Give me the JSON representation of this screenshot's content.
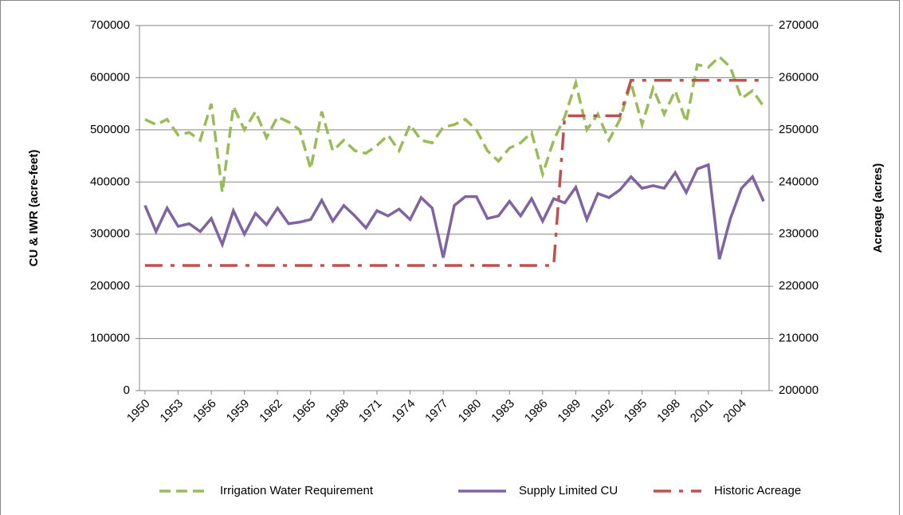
{
  "chart_data": {
    "type": "line",
    "y_label": "CU & IWR (acre-feet)",
    "y2_label": "Acreage (acres)",
    "x": [
      1950,
      1951,
      1952,
      1953,
      1954,
      1955,
      1956,
      1957,
      1958,
      1959,
      1960,
      1961,
      1962,
      1963,
      1964,
      1965,
      1966,
      1967,
      1968,
      1969,
      1970,
      1971,
      1972,
      1973,
      1974,
      1975,
      1976,
      1977,
      1978,
      1979,
      1980,
      1981,
      1982,
      1983,
      1984,
      1985,
      1986,
      1987,
      1988,
      1989,
      1990,
      1991,
      1992,
      1993,
      1994,
      1995,
      1996,
      1997,
      1998,
      1999,
      2000,
      2001,
      2002,
      2003,
      2004,
      2005,
      2006
    ],
    "xlim": [
      1949.5,
      2006.5
    ],
    "xticks": [
      1950,
      1953,
      1956,
      1959,
      1962,
      1965,
      1968,
      1971,
      1974,
      1977,
      1980,
      1983,
      1986,
      1989,
      1992,
      1995,
      1998,
      2001,
      2004
    ],
    "ylim": [
      0,
      700000
    ],
    "yticks": [
      0,
      100000,
      200000,
      300000,
      400000,
      500000,
      600000,
      700000
    ],
    "y2lim": [
      200000,
      270000
    ],
    "y2ticks": [
      200000,
      210000,
      220000,
      230000,
      240000,
      250000,
      260000,
      270000
    ],
    "grid": true,
    "legend": "bottom",
    "series": [
      {
        "name": "Irrigation Water Requirement",
        "color": "#9bbb59",
        "dash": "dashed",
        "values": [
          520000,
          510000,
          520000,
          490000,
          495000,
          480000,
          550000,
          380000,
          545000,
          500000,
          535000,
          485000,
          525000,
          515000,
          500000,
          425000,
          535000,
          460000,
          480000,
          460000,
          455000,
          470000,
          490000,
          460000,
          510000,
          480000,
          475000,
          505000,
          510000,
          520000,
          500000,
          460000,
          440000,
          465000,
          475000,
          495000,
          415000,
          480000,
          525000,
          590000,
          500000,
          530000,
          480000,
          520000,
          590000,
          510000,
          580000,
          530000,
          575000,
          515000,
          625000,
          620000,
          640000,
          620000,
          560000,
          575000,
          545000
        ]
      },
      {
        "name": "Supply Limited CU",
        "color": "#8064a2",
        "dash": "solid",
        "values": [
          355000,
          305000,
          350000,
          315000,
          320000,
          305000,
          330000,
          280000,
          345000,
          300000,
          340000,
          318000,
          350000,
          320000,
          323000,
          328000,
          365000,
          325000,
          355000,
          335000,
          312000,
          345000,
          335000,
          348000,
          328000,
          370000,
          350000,
          255000,
          355000,
          372000,
          372000,
          330000,
          335000,
          363000,
          335000,
          368000,
          325000,
          368000,
          360000,
          390000,
          328000,
          378000,
          370000,
          385000,
          410000,
          388000,
          393000,
          388000,
          418000,
          380000,
          425000,
          433000,
          252000,
          330000,
          388000,
          410000,
          363000
        ]
      },
      {
        "name": "Historic Acreage",
        "color": "#c0504d",
        "dash": "dashdot",
        "axis": "y2",
        "values": [
          224000,
          224000,
          224000,
          224000,
          224000,
          224000,
          224000,
          224000,
          224000,
          224000,
          224000,
          224000,
          224000,
          224000,
          224000,
          224000,
          224000,
          224000,
          224000,
          224000,
          224000,
          224000,
          224000,
          224000,
          224000,
          224000,
          224000,
          224000,
          224000,
          224000,
          224000,
          224000,
          224000,
          224000,
          224000,
          224000,
          224000,
          224000,
          252700,
          252700,
          252700,
          252700,
          252700,
          252700,
          259500,
          259500,
          259500,
          259500,
          259500,
          259500,
          259500,
          259500,
          259500,
          259500,
          259500,
          259500,
          259500
        ]
      }
    ]
  }
}
